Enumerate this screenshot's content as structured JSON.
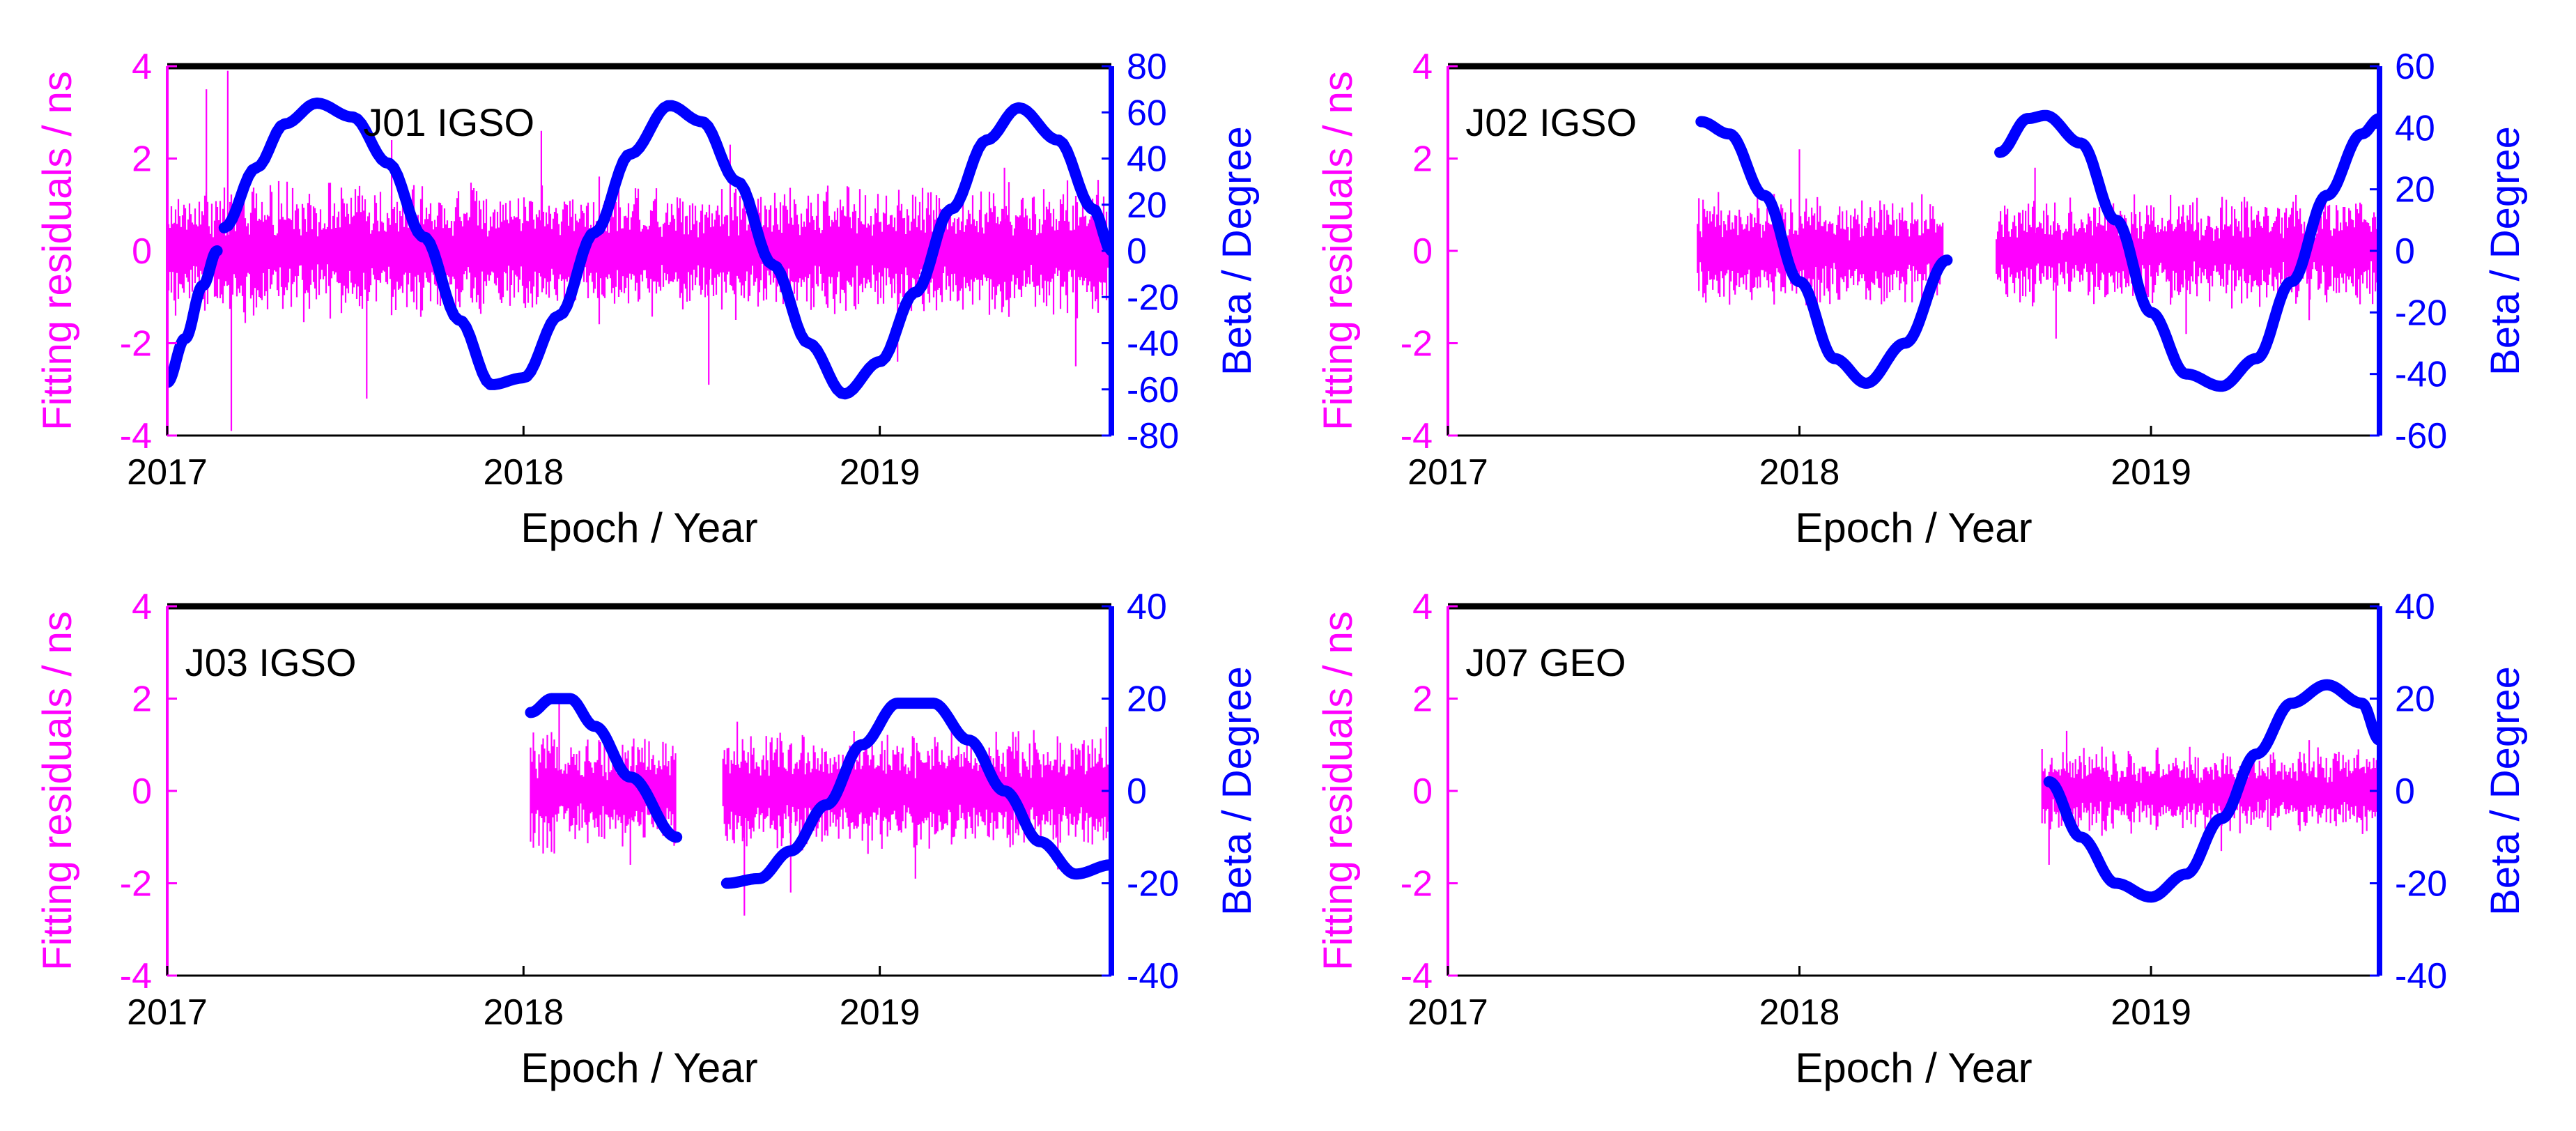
{
  "colors": {
    "residual": "#ff00ff",
    "beta": "#0000ff",
    "axis": "#000000"
  },
  "chart_data": [
    {
      "type": "line",
      "title": "J01 IGSO",
      "xlabel": "Epoch / Year",
      "ylabel_left": "Fitting residuals / ns",
      "ylabel_right": "Beta / Degree",
      "xlim": [
        2017.0,
        2019.65
      ],
      "ylim_left": [
        -4,
        4
      ],
      "ylim_right": [
        -80,
        80
      ],
      "xticks": [
        2017,
        2018,
        2019
      ],
      "xtick_labels": [
        "2017",
        "2018",
        "2019"
      ],
      "yticks_left": [
        -4,
        -2,
        0,
        2,
        4
      ],
      "ytick_labels_left": [
        "-4",
        "-2",
        "0",
        "2",
        "4"
      ],
      "yticks_right": [
        -80,
        -60,
        -40,
        -20,
        0,
        20,
        40,
        60,
        80
      ],
      "ytick_labels_right": [
        "-80",
        "-60",
        "-40",
        "-20",
        "0",
        "20",
        "40",
        "60",
        "80"
      ],
      "series": [
        {
          "name": "Fitting residuals",
          "axis": "left",
          "segments": [
            [
              2017.0,
              2019.65
            ]
          ],
          "spread_ns": 0.8,
          "spikes": [
            [
              2017.11,
              3.5
            ],
            [
              2017.17,
              3.9
            ],
            [
              2017.18,
              -3.9
            ],
            [
              2017.63,
              2.4
            ],
            [
              2017.56,
              -3.2
            ],
            [
              2018.05,
              2.6
            ],
            [
              2018.58,
              2.3
            ],
            [
              2018.52,
              -2.9
            ],
            [
              2019.05,
              -2.4
            ],
            [
              2019.35,
              1.8
            ],
            [
              2019.55,
              -2.5
            ]
          ]
        },
        {
          "name": "Beta angle",
          "axis": "right",
          "segments": [
            {
              "x": [
                2017.0,
                2017.05,
                2017.1,
                2017.14
              ],
              "y": [
                -57,
                -38,
                -15,
                0
              ]
            },
            {
              "x": [
                2017.16,
                2017.25,
                2017.33,
                2017.42,
                2017.52,
                2017.62,
                2017.72,
                2017.82,
                2017.91,
                2018.0,
                2018.1,
                2018.2,
                2018.3,
                2018.41,
                2018.5,
                2018.6,
                2018.7,
                2018.8,
                2018.9,
                2019.0,
                2019.1,
                2019.2,
                2019.3,
                2019.39,
                2019.5,
                2019.6,
                2019.65
              ],
              "y": [
                10,
                36,
                55,
                64,
                58,
                38,
                6,
                -30,
                -58,
                -55,
                -28,
                8,
                42,
                63,
                56,
                30,
                -6,
                -40,
                -62,
                -48,
                -18,
                18,
                48,
                62,
                48,
                18,
                0
              ]
            }
          ]
        }
      ]
    },
    {
      "type": "line",
      "title": "J02 IGSO",
      "xlabel": "Epoch / Year",
      "ylabel_left": "Fitting residuals / ns",
      "ylabel_right": "Beta / Degree",
      "xlim": [
        2017.0,
        2019.65
      ],
      "ylim_left": [
        -4,
        4
      ],
      "ylim_right": [
        -60,
        60
      ],
      "xticks": [
        2017,
        2018,
        2019
      ],
      "xtick_labels": [
        "2017",
        "2018",
        "2019"
      ],
      "yticks_left": [
        -4,
        -2,
        0,
        2,
        4
      ],
      "ytick_labels_left": [
        "-4",
        "-2",
        "0",
        "2",
        "4"
      ],
      "yticks_right": [
        -60,
        -40,
        -20,
        0,
        20,
        40,
        60
      ],
      "ytick_labels_right": [
        "-60",
        "-40",
        "-20",
        "0",
        "20",
        "40",
        "60"
      ],
      "series": [
        {
          "name": "Fitting residuals",
          "axis": "left",
          "segments": [
            [
              2017.71,
              2018.41
            ],
            [
              2018.56,
              2019.65
            ]
          ],
          "spread_ns": 0.65,
          "spikes": [
            [
              2018.0,
              2.2
            ],
            [
              2018.05,
              -1.6
            ],
            [
              2018.67,
              1.8
            ],
            [
              2018.73,
              -1.9
            ],
            [
              2019.1,
              -1.8
            ],
            [
              2019.45,
              -1.5
            ]
          ]
        },
        {
          "name": "Beta angle",
          "axis": "right",
          "segments": [
            {
              "x": [
                2017.72,
                2017.8,
                2017.9,
                2018.0,
                2018.1,
                2018.19,
                2018.3,
                2018.42
              ],
              "y": [
                42,
                38,
                18,
                -10,
                -35,
                -43,
                -30,
                -3
              ]
            },
            {
              "x": [
                2018.57,
                2018.65,
                2018.7,
                2018.8,
                2018.9,
                2019.0,
                2019.1,
                2019.2,
                2019.3,
                2019.4,
                2019.5,
                2019.6,
                2019.65
              ],
              "y": [
                32,
                43,
                44,
                35,
                10,
                -20,
                -40,
                -44,
                -35,
                -10,
                18,
                38,
                43
              ]
            }
          ]
        }
      ]
    },
    {
      "type": "line",
      "title": "J03 IGSO",
      "xlabel": "Epoch / Year",
      "ylabel_left": "Fitting residuals / ns",
      "ylabel_right": "Beta / Degree",
      "xlim": [
        2017.0,
        2019.65
      ],
      "ylim_left": [
        -4,
        4
      ],
      "ylim_right": [
        -40,
        40
      ],
      "xticks": [
        2017,
        2018,
        2019
      ],
      "xtick_labels": [
        "2017",
        "2018",
        "2019"
      ],
      "yticks_left": [
        -4,
        -2,
        0,
        2,
        4
      ],
      "ytick_labels_left": [
        "-4",
        "-2",
        "0",
        "2",
        "4"
      ],
      "yticks_right": [
        -40,
        -20,
        0,
        20,
        40
      ],
      "ytick_labels_right": [
        "-40",
        "-20",
        "0",
        "20",
        "40"
      ],
      "series": [
        {
          "name": "Fitting residuals",
          "axis": "left",
          "segments": [
            [
              2018.02,
              2018.43
            ],
            [
              2018.56,
              2019.65
            ]
          ],
          "spread_ns": 0.7,
          "spikes": [
            [
              2018.1,
              1.9
            ],
            [
              2018.3,
              -1.6
            ],
            [
              2018.6,
              1.5
            ],
            [
              2018.62,
              -2.7
            ],
            [
              2018.75,
              -2.2
            ],
            [
              2019.1,
              -1.9
            ],
            [
              2019.5,
              -1.7
            ]
          ]
        },
        {
          "name": "Beta angle",
          "axis": "right",
          "segments": [
            {
              "x": [
                2018.02,
                2018.08,
                2018.13,
                2018.2,
                2018.3,
                2018.43
              ],
              "y": [
                17,
                20,
                20,
                14,
                3,
                -10
              ]
            },
            {
              "x": [
                2018.57,
                2018.66,
                2018.75,
                2018.85,
                2018.95,
                2019.05,
                2019.15,
                2019.25,
                2019.35,
                2019.45,
                2019.55,
                2019.65
              ],
              "y": [
                -20,
                -19,
                -13,
                -3,
                10,
                19,
                19,
                11,
                0,
                -11,
                -18,
                -16
              ]
            }
          ]
        }
      ]
    },
    {
      "type": "line",
      "title": "J07 GEO",
      "xlabel": "Epoch / Year",
      "ylabel_left": "Fitting residuals / ns",
      "ylabel_right": "Beta / Degree",
      "xlim": [
        2017.0,
        2019.65
      ],
      "ylim_left": [
        -4,
        4
      ],
      "ylim_right": [
        -40,
        40
      ],
      "xticks": [
        2017,
        2018,
        2019
      ],
      "xtick_labels": [
        "2017",
        "2018",
        "2019"
      ],
      "yticks_left": [
        -4,
        -2,
        0,
        2,
        4
      ],
      "ytick_labels_left": [
        "-4",
        "-2",
        "0",
        "2",
        "4"
      ],
      "yticks_right": [
        -40,
        -20,
        0,
        20,
        40
      ],
      "ytick_labels_right": [
        "-40",
        "-20",
        "0",
        "20",
        "40"
      ],
      "series": [
        {
          "name": "Fitting residuals",
          "axis": "left",
          "segments": [
            [
              2018.69,
              2019.65
            ]
          ],
          "spread_ns": 0.5,
          "spikes": [
            [
              2018.71,
              -1.6
            ],
            [
              2018.76,
              1.3
            ],
            [
              2019.2,
              -1.3
            ],
            [
              2019.45,
              1.1
            ]
          ]
        },
        {
          "name": "Beta angle",
          "axis": "right",
          "segments": [
            {
              "x": [
                2018.71,
                2018.8,
                2018.9,
                2019.0,
                2019.1,
                2019.2,
                2019.3,
                2019.4,
                2019.5,
                2019.6,
                2019.65
              ],
              "y": [
                2,
                -10,
                -20,
                -23,
                -18,
                -6,
                8,
                19,
                23,
                19,
                11
              ]
            }
          ]
        }
      ]
    }
  ]
}
